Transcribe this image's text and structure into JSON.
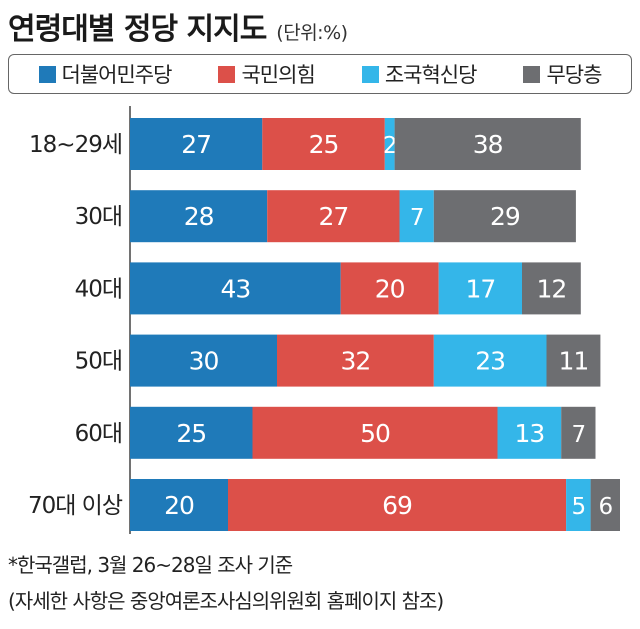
{
  "title": "연령대별 정당 지지도",
  "unit": "(단위:%)",
  "footnotes": [
    "*한국갤럽, 3월 26~28일 조사 기준",
    "(자세한 사항은 중앙여론조사심의위원회 홈페이지 참조)"
  ],
  "colors": {
    "democratic": "#1f7ab9",
    "ppp": "#dc5049",
    "rebuilding": "#34b6e9",
    "none": "#6d6e71"
  },
  "chart_data": {
    "type": "bar",
    "orientation": "horizontal",
    "stacked": true,
    "categories": [
      "18~29세",
      "30대",
      "40대",
      "50대",
      "60대",
      "70대 이상"
    ],
    "series": [
      {
        "name": "더불어민주당",
        "color": "#1f7ab9",
        "values": [
          27,
          28,
          43,
          30,
          25,
          20
        ]
      },
      {
        "name": "국민의힘",
        "color": "#dc5049",
        "values": [
          25,
          27,
          20,
          32,
          50,
          69
        ]
      },
      {
        "name": "조국혁신당",
        "color": "#34b6e9",
        "values": [
          2,
          7,
          17,
          23,
          13,
          5
        ]
      },
      {
        "name": "무당층",
        "color": "#6d6e71",
        "values": [
          38,
          29,
          12,
          11,
          7,
          6
        ]
      }
    ],
    "legend_position": "top",
    "grid": false
  }
}
